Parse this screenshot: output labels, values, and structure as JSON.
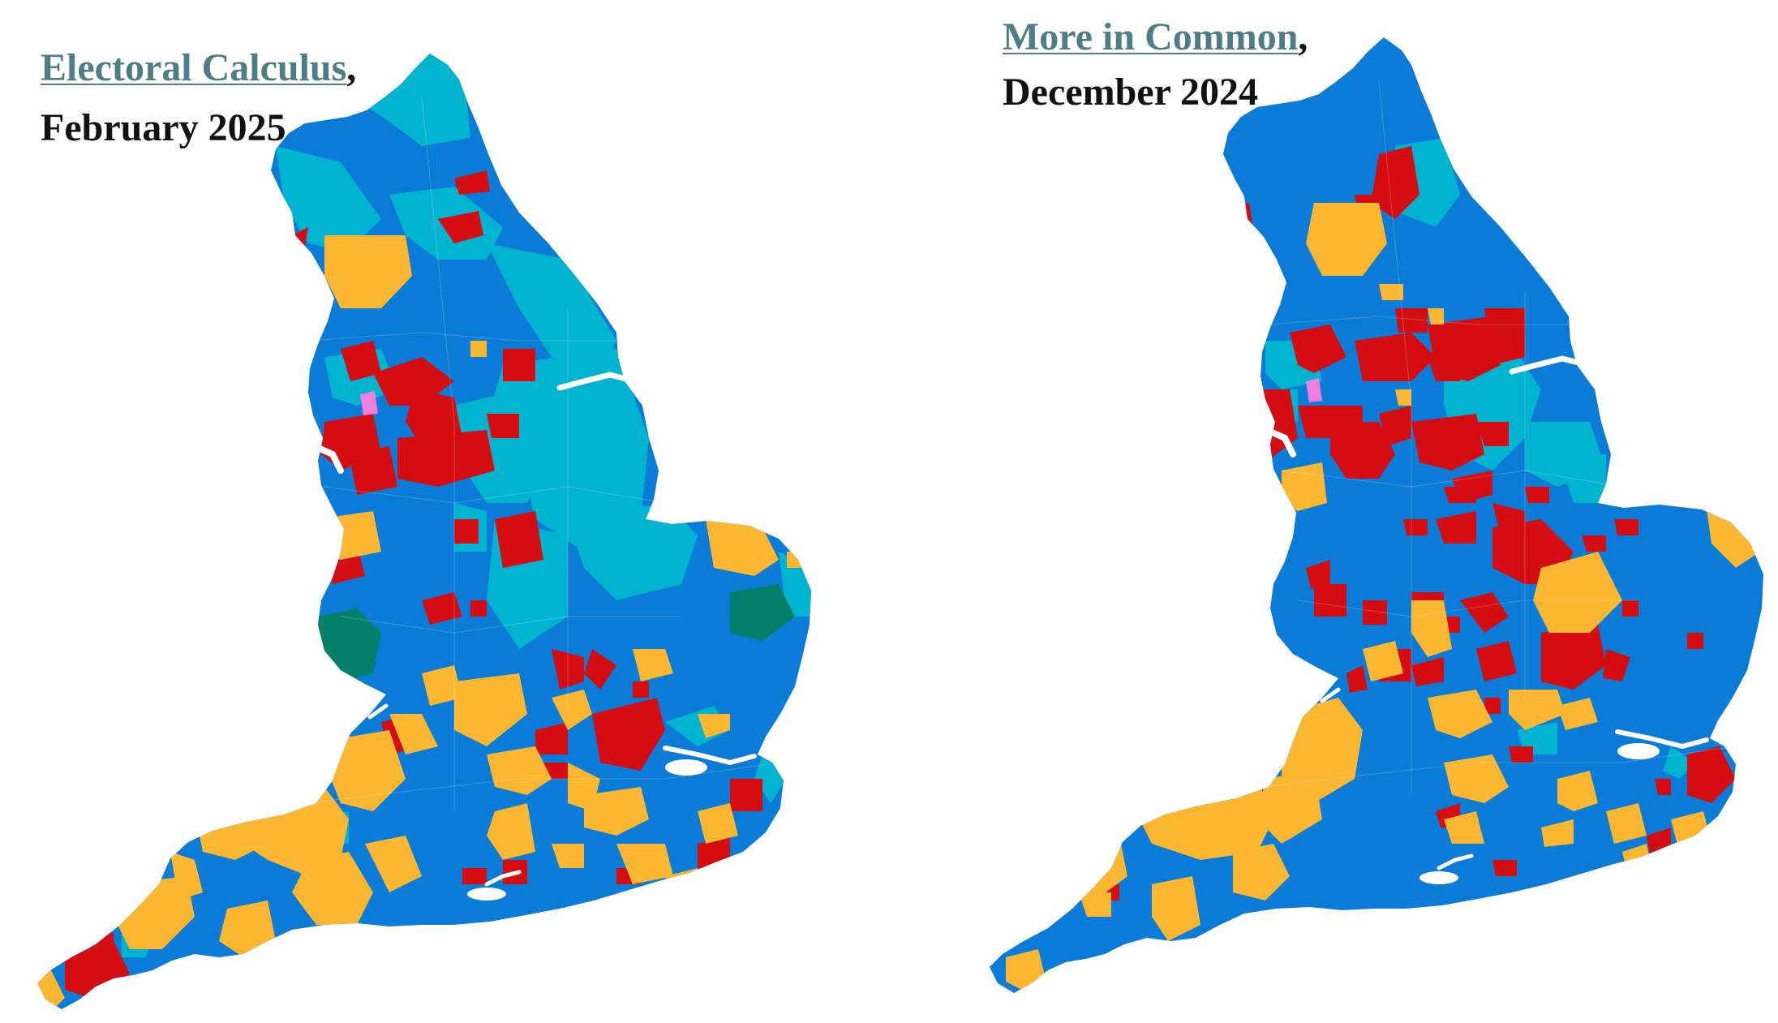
{
  "colors": {
    "reform": "#0a7bd6",
    "conservative": "#00b4d0",
    "labour": "#d40d12",
    "libdem": "#fbb731",
    "green": "#04806a",
    "independent": "#ef7fdf",
    "link": "#4f7d86",
    "water": "#ffffff"
  },
  "maps": [
    {
      "source": "Electoral Calculus",
      "comma": ",",
      "date": "February 2025"
    },
    {
      "source": "More in Common",
      "comma": ",",
      "date": "December 2024"
    }
  ]
}
